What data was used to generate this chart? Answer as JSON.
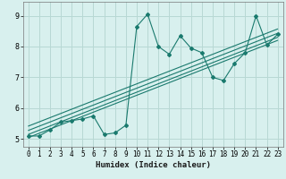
{
  "title": "",
  "xlabel": "Humidex (Indice chaleur)",
  "bg_color": "#d8f0ee",
  "grid_color": "#b8d8d4",
  "line_color": "#1a7a6e",
  "xlim": [
    -0.5,
    23.5
  ],
  "ylim": [
    4.75,
    9.45
  ],
  "xticks": [
    0,
    1,
    2,
    3,
    4,
    5,
    6,
    7,
    8,
    9,
    10,
    11,
    12,
    13,
    14,
    15,
    16,
    17,
    18,
    19,
    20,
    21,
    22,
    23
  ],
  "yticks": [
    5,
    6,
    7,
    8,
    9
  ],
  "data_x": [
    0,
    1,
    2,
    3,
    4,
    5,
    6,
    7,
    8,
    9,
    10,
    11,
    12,
    13,
    14,
    15,
    16,
    17,
    18,
    19,
    20,
    21,
    22,
    23
  ],
  "data_y": [
    5.1,
    5.1,
    5.3,
    5.55,
    5.6,
    5.65,
    5.75,
    5.15,
    5.2,
    5.45,
    8.65,
    9.05,
    8.0,
    7.75,
    8.35,
    7.95,
    7.8,
    7.0,
    6.9,
    7.45,
    7.8,
    9.0,
    8.05,
    8.4
  ],
  "reg_lines": [
    {
      "x0": 0,
      "y0": 5.05,
      "x1": 23,
      "y1": 8.2
    },
    {
      "x0": 0,
      "y0": 5.15,
      "x1": 23,
      "y1": 8.3
    },
    {
      "x0": 0,
      "y0": 5.28,
      "x1": 23,
      "y1": 8.43
    },
    {
      "x0": 0,
      "y0": 5.42,
      "x1": 23,
      "y1": 8.57
    }
  ],
  "xlabel_fontsize": 6.5,
  "tick_fontsize": 5.5
}
